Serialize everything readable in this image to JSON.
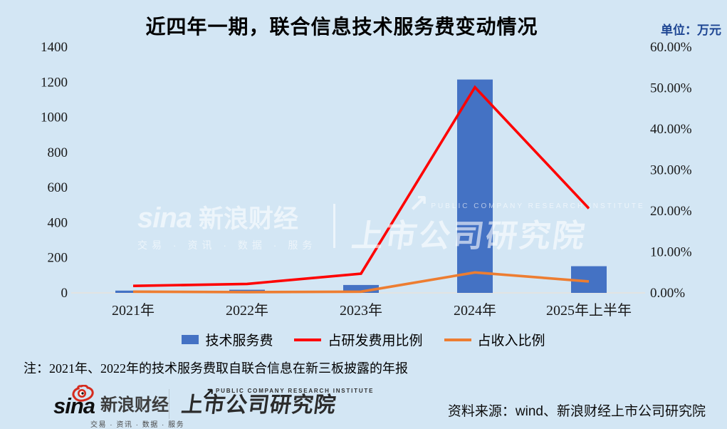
{
  "title": "近四年一期，联合信息技术服务费变动情况",
  "unit_label": "单位：万元",
  "chart_data": {
    "type": "combo",
    "title": "近四年一期，联合信息技术服务费变动情况",
    "categories": [
      "2021年",
      "2022年",
      "2023年",
      "2024年",
      "2025年上半年"
    ],
    "series": [
      {
        "name": "技术服务费",
        "type": "bar",
        "axis": "left",
        "color": "#4472c4",
        "values": [
          13,
          18,
          45,
          1215,
          152
        ]
      },
      {
        "name": "占研发费用比例",
        "type": "line",
        "axis": "right",
        "color": "#fe0101",
        "values": [
          1.7,
          2.2,
          4.7,
          50.2,
          20.6
        ]
      },
      {
        "name": "占收入比例",
        "type": "line",
        "axis": "right",
        "color": "#ed7d31",
        "values": [
          0.3,
          0.2,
          0.3,
          5.0,
          2.8
        ]
      }
    ],
    "left_axis": {
      "min": 0,
      "max": 1400,
      "step": 200,
      "unit": "万元",
      "tick_labels": [
        "0",
        "200",
        "400",
        "600",
        "800",
        "1000",
        "1200",
        "1400"
      ]
    },
    "right_axis": {
      "min": 0,
      "max": 60,
      "step": 10,
      "unit": "%",
      "tick_labels": [
        "0.00%",
        "10.00%",
        "20.00%",
        "30.00%",
        "40.00%",
        "50.00%",
        "60.00%"
      ]
    },
    "grid": "baseline only",
    "legend_position": "bottom",
    "background_color": "#d3e6f4",
    "baseline_color": "#e8e4dd"
  },
  "note": "注：2021年、2022年的技术服务费取自联合信息在新三板披露的年报",
  "watermark": {
    "sina_word": "sina",
    "brand": "新浪财经",
    "tagline": "交易 · 资讯 · 数据 · 服务",
    "institute_subtitle": "PUBLIC COMPANY RESEARCH INSTITUTE",
    "institute_name": "上市公司研究院",
    "arrow_glyph": "↗"
  },
  "footer": {
    "sina_word": "sina",
    "sina_brand": "新浪财经",
    "sina_tagline": "交易 · 资讯 · 数据 · 服务",
    "institute_subtitle": "PUBLIC COMPANY RESEARCH INSTITUTE",
    "institute_name": "上市公司研究院",
    "institute_arrow": "↗",
    "source": "资料来源：wind、新浪财经上市公司研究院",
    "sina_red": "#d52b1e"
  }
}
